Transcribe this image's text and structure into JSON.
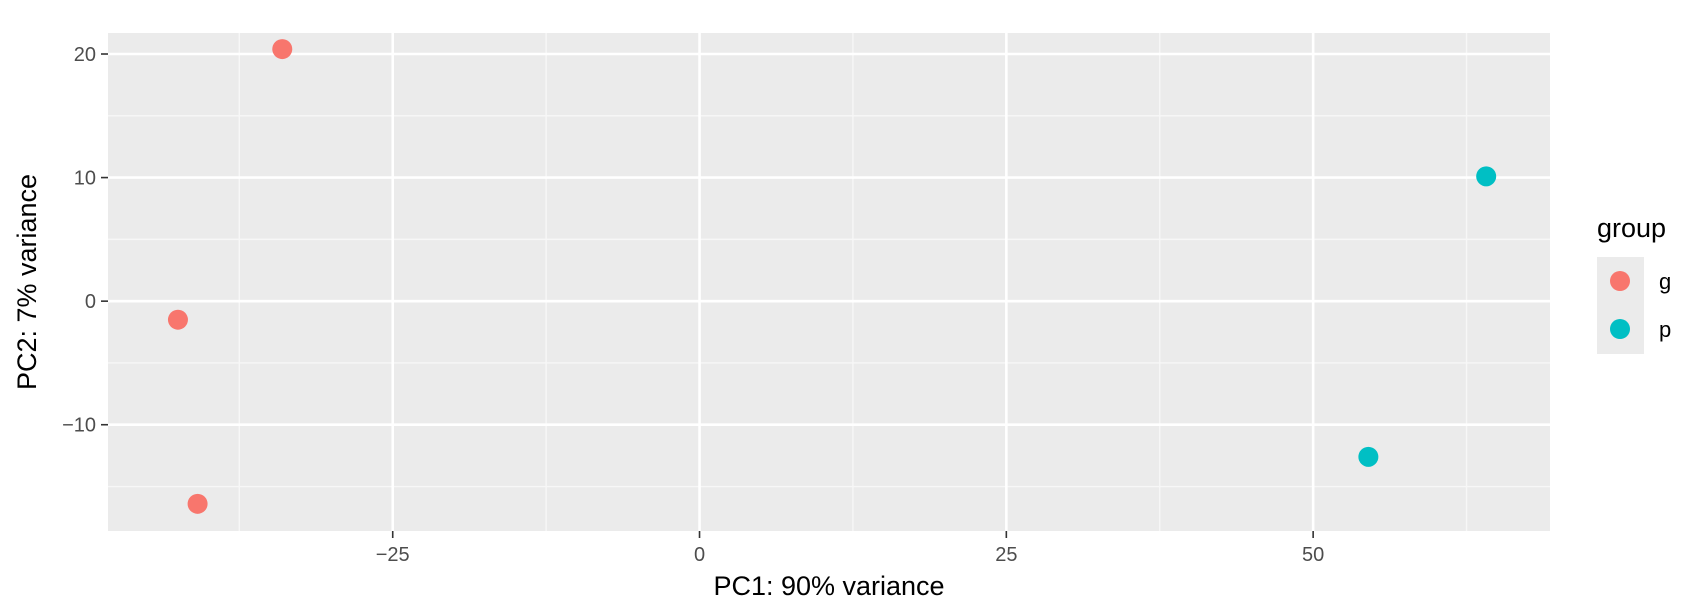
{
  "chart_data": {
    "type": "scatter",
    "xlabel": "PC1: 90% variance",
    "ylabel": "PC2: 7% variance",
    "xlim": [
      -48.2,
      69.3
    ],
    "ylim": [
      -18.6,
      21.7
    ],
    "x_ticks": [
      -25,
      0,
      25,
      50
    ],
    "x_tick_labels": [
      "−25",
      "0",
      "25",
      "50"
    ],
    "y_ticks": [
      -10,
      0,
      10,
      20
    ],
    "y_tick_labels": [
      "−10",
      "0",
      "10",
      "20"
    ],
    "grid": true,
    "legend": {
      "title": "group",
      "position": "right"
    },
    "series": [
      {
        "name": "g",
        "color": "#F8766D",
        "points": [
          [
            -34.0,
            20.4
          ],
          [
            -42.5,
            -1.5
          ],
          [
            -40.9,
            -16.4
          ]
        ]
      },
      {
        "name": "p",
        "color": "#00BFC4",
        "points": [
          [
            54.5,
            -12.6
          ],
          [
            64.1,
            10.1
          ]
        ]
      }
    ]
  },
  "colors": {
    "panel_background": "#EBEBEB",
    "grid_major": "#FFFFFF",
    "grid_minor": "#F7F7F7",
    "legend_key_background": "#EBEBEB"
  }
}
